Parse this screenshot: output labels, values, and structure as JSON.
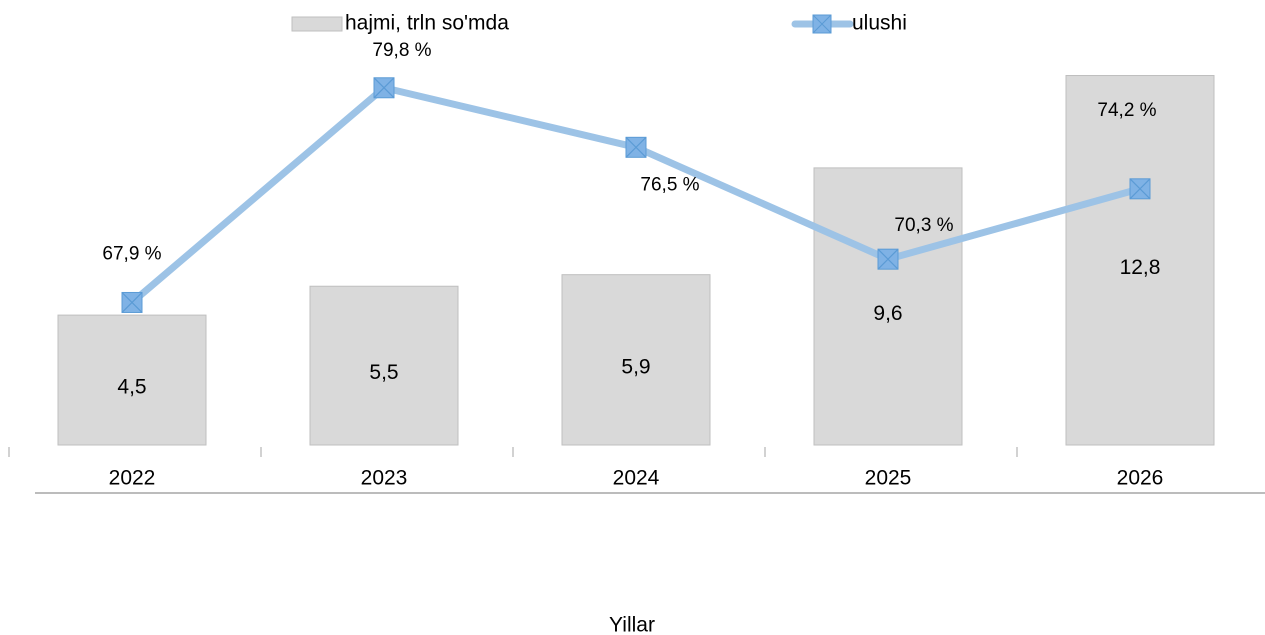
{
  "chart_data": {
    "type": "bar",
    "x_label": "Yillar",
    "categories": [
      "2022",
      "2023",
      "2024",
      "2025",
      "2026"
    ],
    "series": [
      {
        "name": "hajmi, trln so'mda",
        "type": "bar",
        "color": "#d9d9d9",
        "axis": "y",
        "values": [
          4.5,
          5.5,
          5.9,
          9.6,
          12.8
        ],
        "value_labels": [
          "4,5",
          "5,5",
          "5,9",
          "9,6",
          "12,8"
        ]
      },
      {
        "name": "ulushi",
        "type": "line",
        "color": "#9dc3e6",
        "axis": "y2",
        "values": [
          67.9,
          79.8,
          76.5,
          70.3,
          74.2
        ],
        "value_labels": [
          "67,9 %",
          "79,8 %",
          "76,5 %",
          "70,3 %",
          "74,2 %"
        ]
      }
    ],
    "ylim": [
      0,
      15
    ],
    "y2lim": [
      60,
      84
    ],
    "grid": false
  }
}
